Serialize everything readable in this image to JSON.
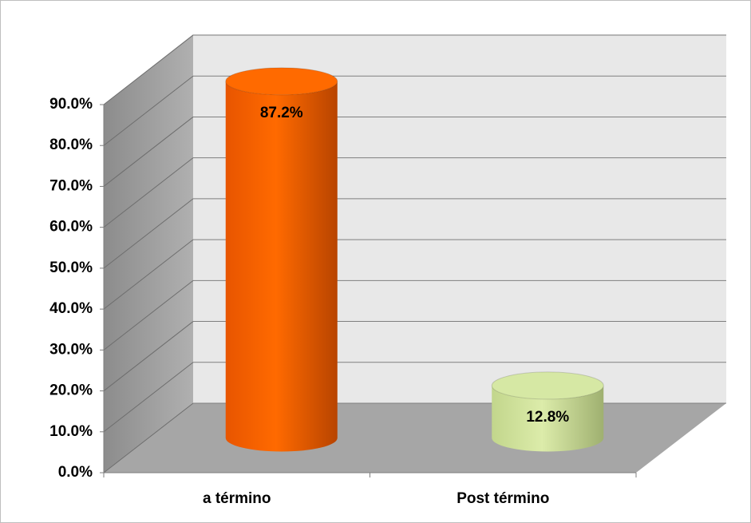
{
  "chart_data": {
    "type": "bar3d",
    "categories": [
      "a término",
      "Post término"
    ],
    "series": [
      {
        "values": [
          87.2,
          12.8
        ],
        "value_labels": [
          "87.2%",
          "12.8%"
        ],
        "colors": [
          "#ff6a00",
          "#d6e8a4"
        ]
      }
    ],
    "ylim": [
      0,
      90
    ],
    "yticks": [
      {
        "value": 0,
        "label": "0.0%"
      },
      {
        "value": 10,
        "label": "10.0%"
      },
      {
        "value": 20,
        "label": "20.0%"
      },
      {
        "value": 30,
        "label": "30.0%"
      },
      {
        "value": 40,
        "label": "40.0%"
      },
      {
        "value": 50,
        "label": "50.0%"
      },
      {
        "value": 60,
        "label": "60.0%"
      },
      {
        "value": 70,
        "label": "70.0%"
      },
      {
        "value": 80,
        "label": "80.0%"
      },
      {
        "value": 90,
        "label": "90.0%"
      }
    ],
    "grid": true
  }
}
